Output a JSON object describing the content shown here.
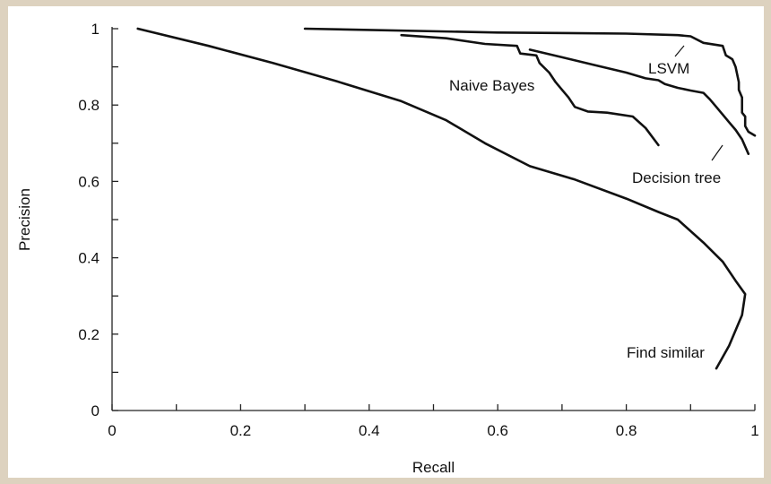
{
  "chart_data": {
    "type": "line",
    "title": "",
    "xlabel": "Recall",
    "ylabel": "Precision",
    "xlim": [
      0,
      1
    ],
    "ylim": [
      0,
      1
    ],
    "grid": false,
    "x_ticks": [
      "0",
      "0.2",
      "0.4",
      "0.6",
      "0.8",
      "1"
    ],
    "y_ticks": [
      "0",
      "0.2",
      "0.4",
      "0.6",
      "0.8",
      "1"
    ],
    "series": [
      {
        "name": "LSVM",
        "points": [
          [
            0.3,
            1.0
          ],
          [
            0.6,
            0.99
          ],
          [
            0.8,
            0.987
          ],
          [
            0.88,
            0.983
          ],
          [
            0.9,
            0.98
          ],
          [
            0.92,
            0.963
          ],
          [
            0.95,
            0.955
          ],
          [
            0.955,
            0.93
          ],
          [
            0.96,
            0.925
          ],
          [
            0.965,
            0.92
          ],
          [
            0.97,
            0.9
          ],
          [
            0.975,
            0.86
          ],
          [
            0.975,
            0.84
          ],
          [
            0.98,
            0.82
          ],
          [
            0.98,
            0.78
          ],
          [
            0.985,
            0.77
          ],
          [
            0.985,
            0.745
          ],
          [
            0.99,
            0.73
          ],
          [
            1.0,
            0.72
          ]
        ]
      },
      {
        "name": "Naive Bayes",
        "points": [
          [
            0.45,
            0.983
          ],
          [
            0.52,
            0.975
          ],
          [
            0.58,
            0.96
          ],
          [
            0.63,
            0.955
          ],
          [
            0.635,
            0.935
          ],
          [
            0.66,
            0.93
          ],
          [
            0.665,
            0.91
          ],
          [
            0.68,
            0.885
          ],
          [
            0.69,
            0.86
          ],
          [
            0.7,
            0.84
          ],
          [
            0.71,
            0.82
          ],
          [
            0.72,
            0.795
          ],
          [
            0.74,
            0.783
          ],
          [
            0.77,
            0.78
          ],
          [
            0.81,
            0.77
          ],
          [
            0.83,
            0.74
          ],
          [
            0.85,
            0.695
          ]
        ]
      },
      {
        "name": "Decision tree",
        "points": [
          [
            0.65,
            0.945
          ],
          [
            0.7,
            0.925
          ],
          [
            0.75,
            0.905
          ],
          [
            0.8,
            0.885
          ],
          [
            0.83,
            0.87
          ],
          [
            0.85,
            0.865
          ],
          [
            0.86,
            0.855
          ],
          [
            0.88,
            0.845
          ],
          [
            0.9,
            0.838
          ],
          [
            0.92,
            0.832
          ],
          [
            0.93,
            0.815
          ],
          [
            0.94,
            0.795
          ],
          [
            0.95,
            0.775
          ],
          [
            0.96,
            0.755
          ],
          [
            0.97,
            0.735
          ],
          [
            0.98,
            0.71
          ],
          [
            0.99,
            0.672
          ]
        ]
      },
      {
        "name": "Find similar",
        "points": [
          [
            0.04,
            1.0
          ],
          [
            0.15,
            0.955
          ],
          [
            0.25,
            0.91
          ],
          [
            0.35,
            0.862
          ],
          [
            0.45,
            0.81
          ],
          [
            0.52,
            0.76
          ],
          [
            0.58,
            0.7
          ],
          [
            0.65,
            0.64
          ],
          [
            0.72,
            0.605
          ],
          [
            0.8,
            0.555
          ],
          [
            0.85,
            0.52
          ],
          [
            0.88,
            0.5
          ],
          [
            0.92,
            0.44
          ],
          [
            0.95,
            0.39
          ],
          [
            0.97,
            0.34
          ],
          [
            0.985,
            0.305
          ],
          [
            0.98,
            0.25
          ],
          [
            0.96,
            0.17
          ],
          [
            0.94,
            0.11
          ]
        ]
      }
    ],
    "annotations": [
      "LSVM",
      "Naive Bayes",
      "Decision tree",
      "Find similar"
    ]
  }
}
